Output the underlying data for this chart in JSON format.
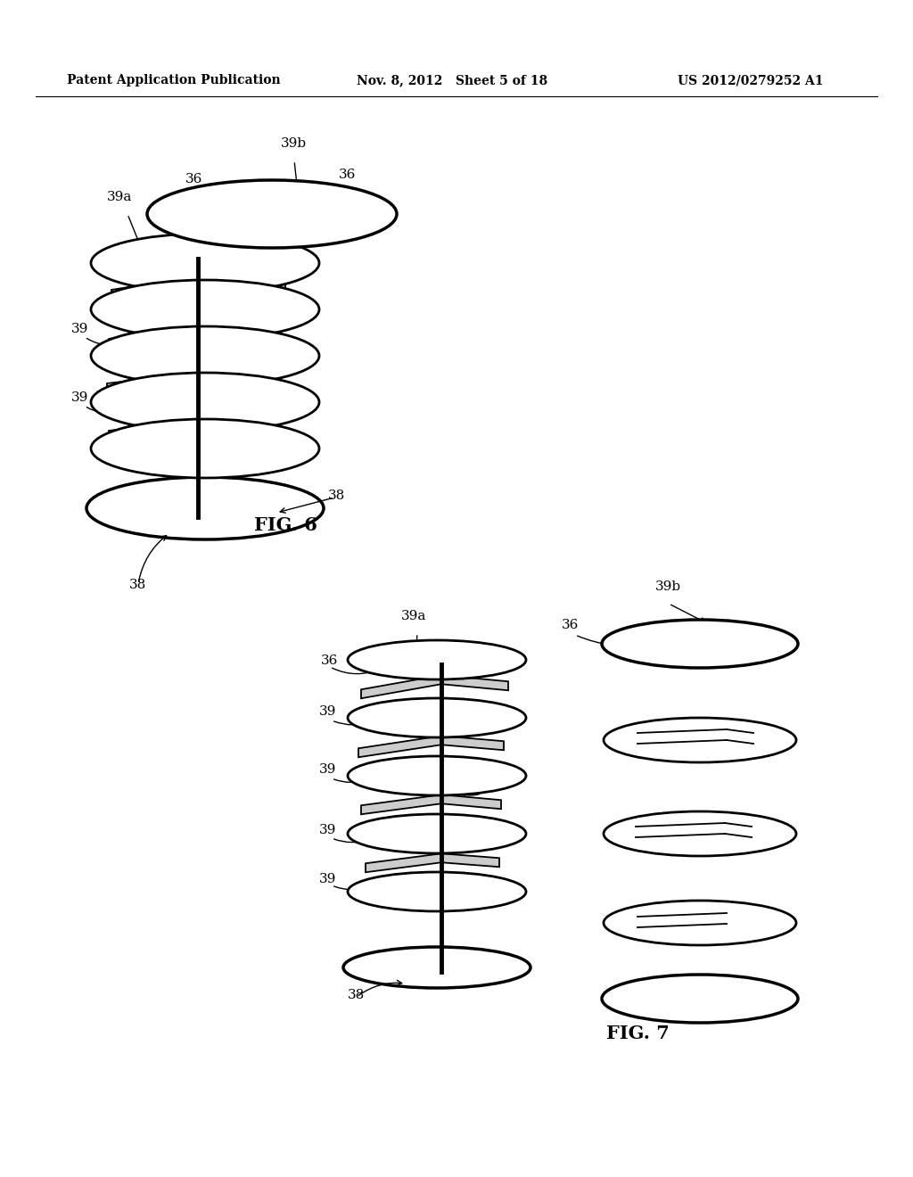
{
  "background_color": "#ffffff",
  "header_left": "Patent Application Publication",
  "header_center": "Nov. 8, 2012   Sheet 5 of 18",
  "header_right": "US 2012/0279252 A1",
  "fig6_label": "FIG. 6",
  "fig7_label": "FIG. 7",
  "line_color": "#000000",
  "lw": 2.0,
  "tlw": 1.3
}
